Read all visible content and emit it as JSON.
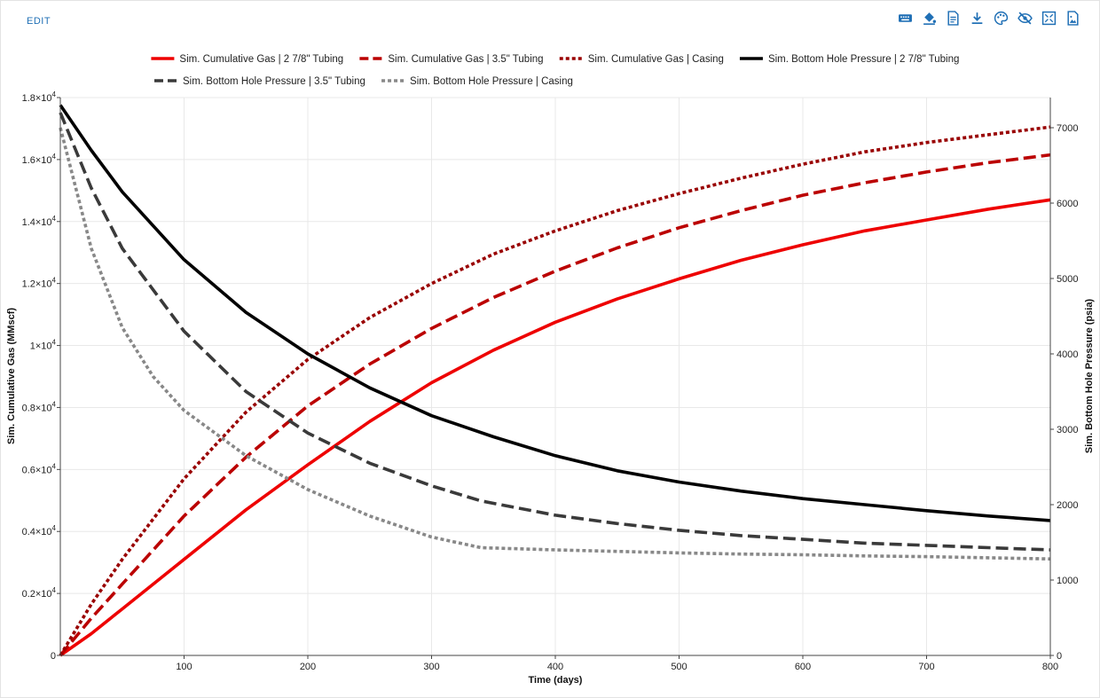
{
  "toolbar": {
    "edit_label": "EDIT",
    "icons": [
      "keyboard-icon",
      "paint-bucket-icon",
      "document-icon",
      "download-icon",
      "palette-icon",
      "eye-off-icon",
      "expand-icon",
      "image-export-icon"
    ],
    "accent_color": "#1f6fb5"
  },
  "chart_data": {
    "type": "line",
    "xlabel": "Time (days)",
    "ylabel": "Sim. Cumulative Gas (MMscf)",
    "y2label": "Sim. Bottom Hole Pressure (psia)",
    "xlim": [
      0,
      800
    ],
    "ylim": [
      0,
      18000
    ],
    "y2lim": [
      0,
      7400
    ],
    "x_ticks": [
      100,
      200,
      300,
      400,
      500,
      600,
      700,
      800
    ],
    "y_ticks": [
      {
        "value": 0,
        "mant": "0",
        "exp": ""
      },
      {
        "value": 2000,
        "mant": "0.2×10",
        "exp": "4"
      },
      {
        "value": 4000,
        "mant": "0.4×10",
        "exp": "4"
      },
      {
        "value": 6000,
        "mant": "0.6×10",
        "exp": "4"
      },
      {
        "value": 8000,
        "mant": "0.8×10",
        "exp": "4"
      },
      {
        "value": 10000,
        "mant": "1×10",
        "exp": "4"
      },
      {
        "value": 12000,
        "mant": "1.2×10",
        "exp": "4"
      },
      {
        "value": 14000,
        "mant": "1.4×10",
        "exp": "4"
      },
      {
        "value": 16000,
        "mant": "1.6×10",
        "exp": "4"
      },
      {
        "value": 18000,
        "mant": "1.8×10",
        "exp": "4"
      }
    ],
    "y2_ticks": [
      0,
      1000,
      2000,
      3000,
      4000,
      5000,
      6000,
      7000
    ],
    "grid": true,
    "legend_position": "top",
    "series": [
      {
        "name": "Sim. Cumulative Gas | 2 7/8\" Tubing",
        "axis": "y",
        "color": "#ee0000",
        "dash": "solid",
        "x": [
          0,
          25,
          50,
          100,
          150,
          200,
          250,
          300,
          350,
          400,
          450,
          500,
          550,
          600,
          650,
          700,
          750,
          800
        ],
        "y": [
          0,
          700,
          1500,
          3100,
          4700,
          6150,
          7550,
          8800,
          9850,
          10750,
          11500,
          12150,
          12750,
          13250,
          13700,
          14050,
          14400,
          14700
        ]
      },
      {
        "name": "Sim. Cumulative Gas | 3.5\" Tubing",
        "axis": "y",
        "color": "#bb0000",
        "dash": "dash",
        "x": [
          0,
          25,
          50,
          100,
          150,
          200,
          250,
          300,
          350,
          400,
          450,
          500,
          550,
          600,
          650,
          700,
          750,
          800
        ],
        "y": [
          0,
          1200,
          2300,
          4500,
          6400,
          8050,
          9400,
          10550,
          11550,
          12400,
          13150,
          13800,
          14350,
          14850,
          15250,
          15600,
          15900,
          16150
        ]
      },
      {
        "name": "Sim. Cumulative Gas | Casing",
        "axis": "y",
        "color": "#990000",
        "dash": "dot",
        "x": [
          0,
          25,
          50,
          100,
          150,
          200,
          250,
          300,
          350,
          400,
          450,
          500,
          550,
          600,
          650,
          700,
          750,
          800
        ],
        "y": [
          0,
          1650,
          3100,
          5700,
          7850,
          9550,
          10900,
          12000,
          12950,
          13700,
          14350,
          14900,
          15400,
          15850,
          16250,
          16550,
          16800,
          17050
        ]
      },
      {
        "name": "Sim. Bottom Hole Pressure | 2 7/8\" Tubing",
        "axis": "y2",
        "color": "#000000",
        "dash": "solid",
        "x": [
          0,
          25,
          50,
          100,
          150,
          200,
          250,
          300,
          350,
          400,
          450,
          500,
          550,
          600,
          650,
          700,
          750,
          800
        ],
        "y": [
          7300,
          6700,
          6150,
          5250,
          4550,
          4000,
          3550,
          3180,
          2900,
          2650,
          2450,
          2300,
          2180,
          2080,
          2000,
          1920,
          1850,
          1790
        ]
      },
      {
        "name": "Sim. Bottom Hole Pressure | 3.5\" Tubing",
        "axis": "y2",
        "color": "#3a3a3a",
        "dash": "dash",
        "x": [
          0,
          25,
          50,
          100,
          150,
          200,
          250,
          300,
          340,
          400,
          450,
          500,
          550,
          600,
          650,
          700,
          750,
          800
        ],
        "y": [
          7200,
          6200,
          5400,
          4300,
          3500,
          2950,
          2550,
          2250,
          2050,
          1860,
          1750,
          1660,
          1590,
          1540,
          1490,
          1460,
          1430,
          1400
        ]
      },
      {
        "name": "Sim. Bottom Hole Pressure | Casing",
        "axis": "y2",
        "color": "#888888",
        "dash": "dot",
        "x": [
          0,
          25,
          50,
          75,
          100,
          150,
          200,
          250,
          300,
          340,
          400,
          450,
          500,
          550,
          600,
          650,
          700,
          750,
          800
        ],
        "y": [
          7000,
          5400,
          4350,
          3700,
          3250,
          2650,
          2200,
          1850,
          1570,
          1430,
          1400,
          1380,
          1360,
          1345,
          1335,
          1320,
          1310,
          1295,
          1280
        ]
      }
    ]
  }
}
